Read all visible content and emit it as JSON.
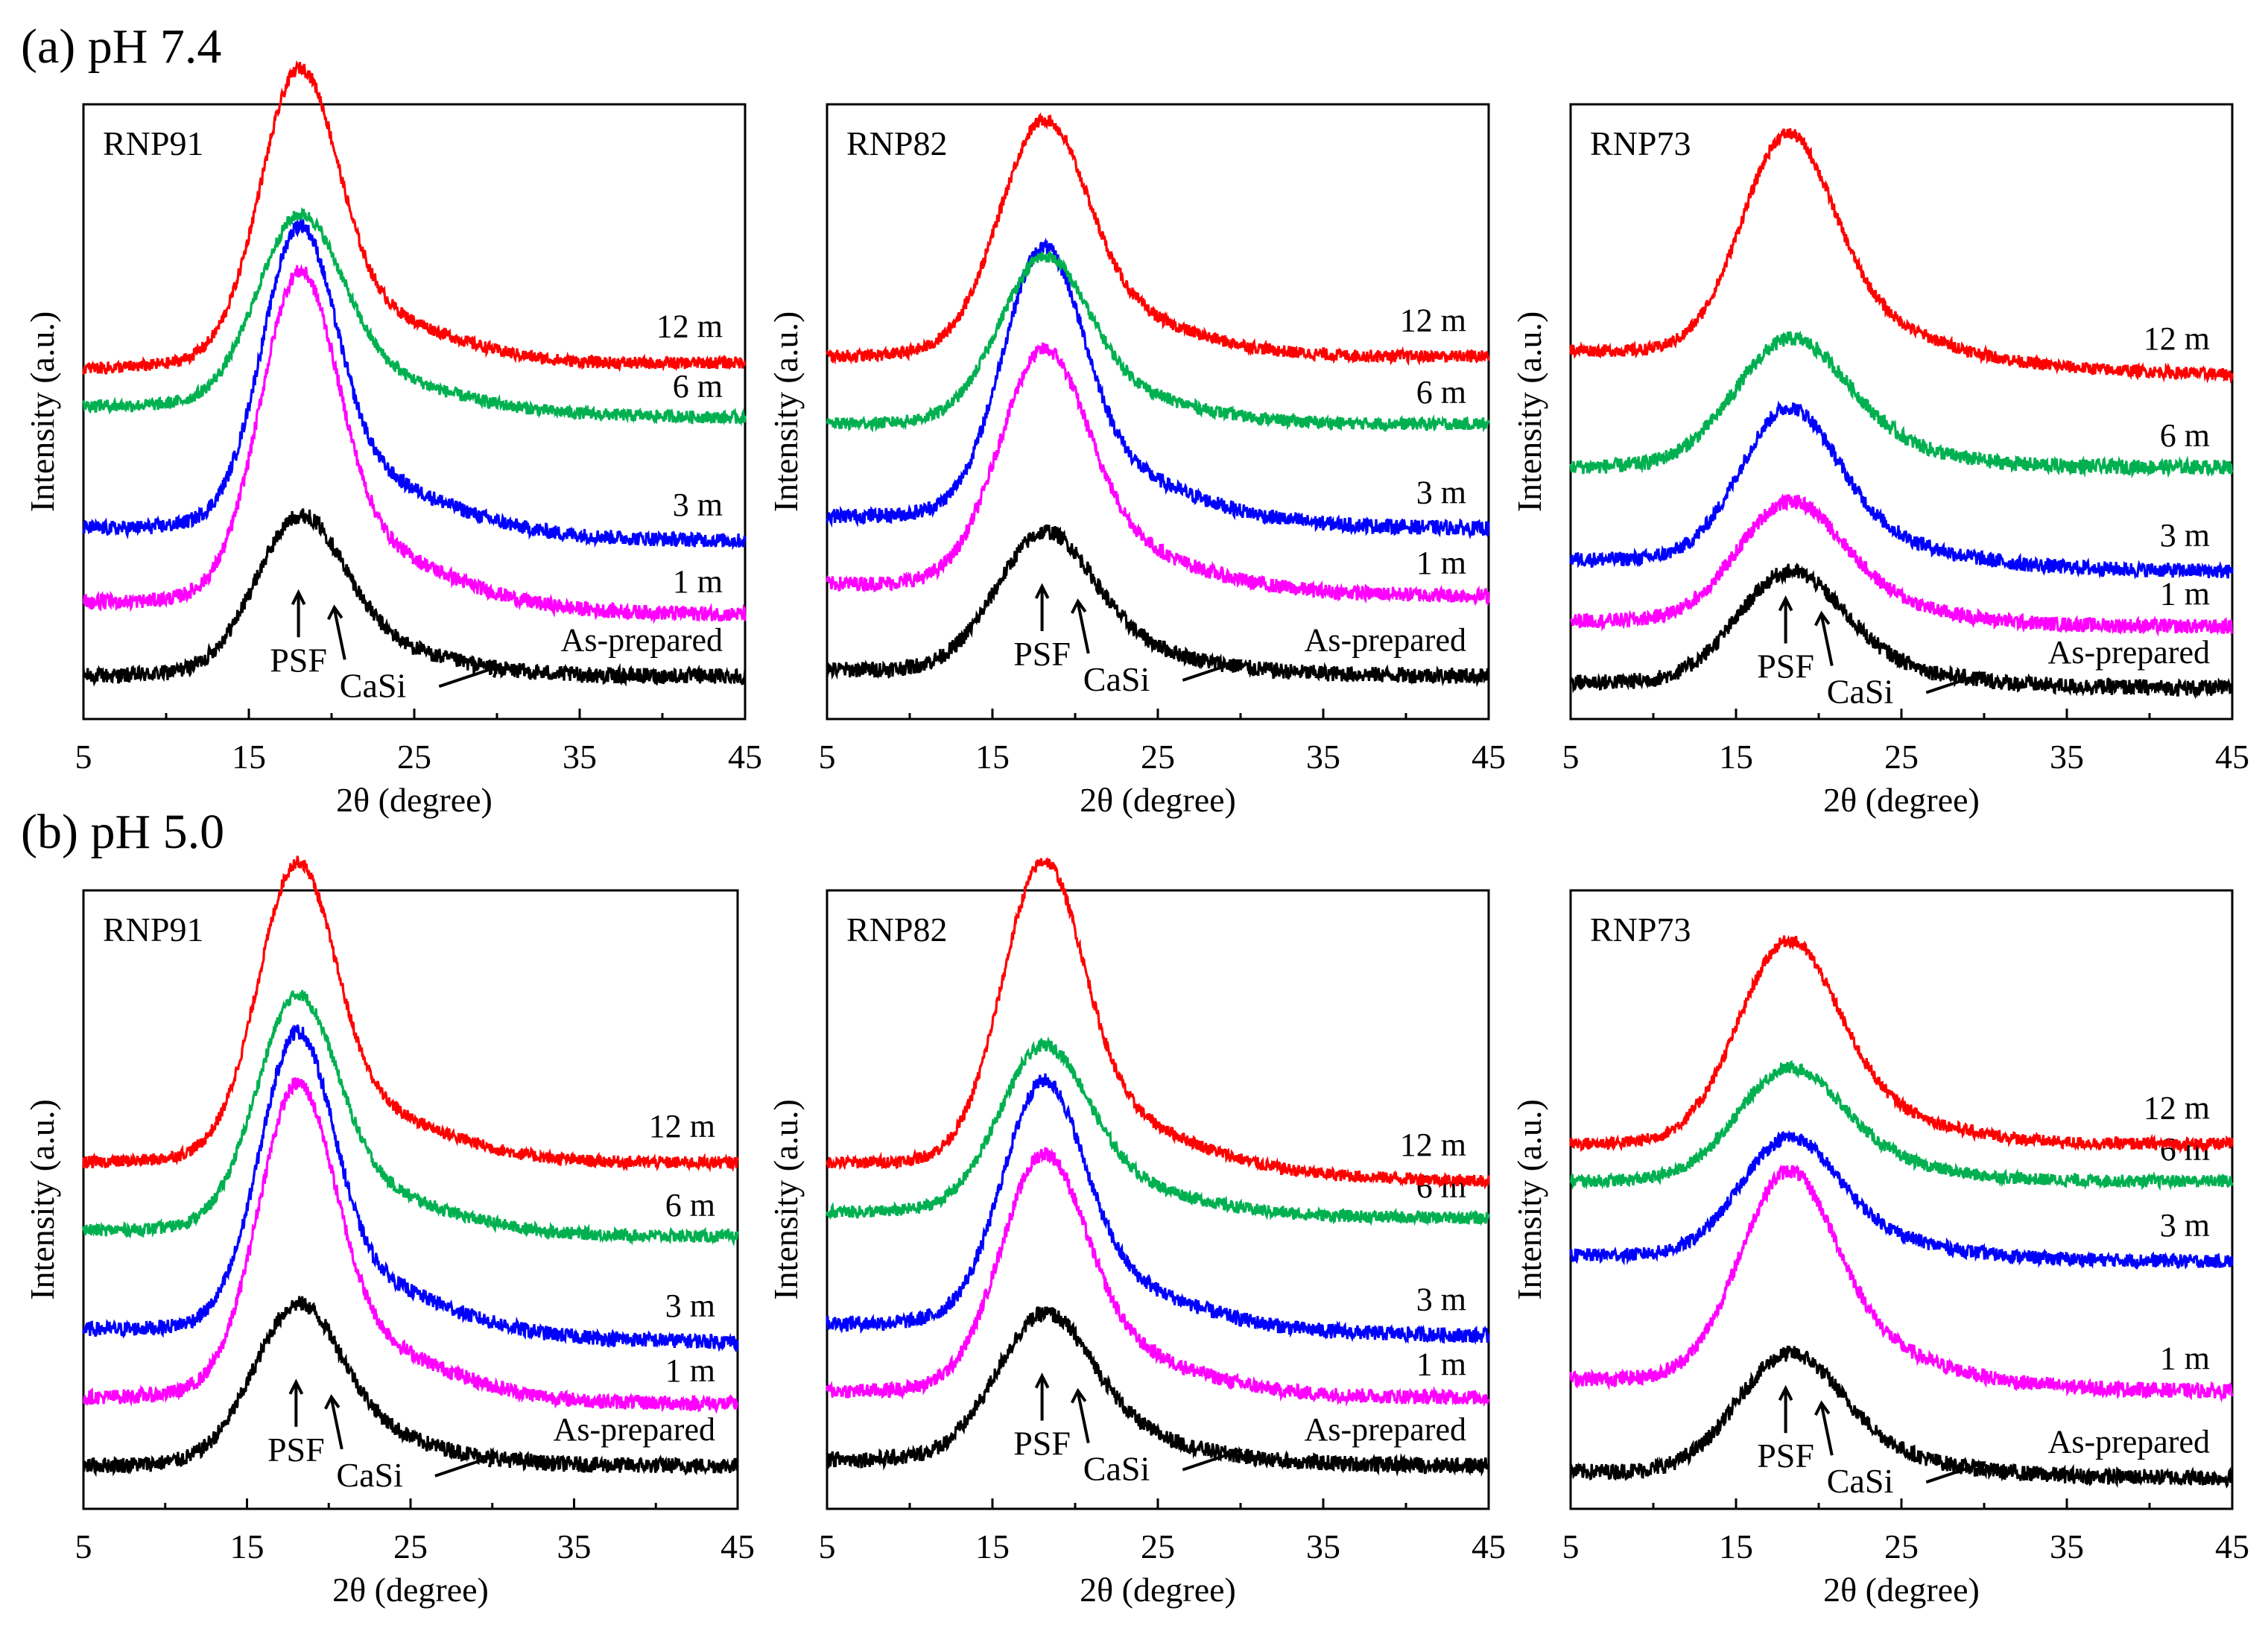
{
  "rows": [
    {
      "heading": "(a) pH 7.4"
    },
    {
      "heading": "(b) pH 5.0"
    }
  ],
  "common": {
    "xlabel": "2θ (degree)",
    "ylabel": "Intensity (a.u.)",
    "xticks": [
      "5",
      "15",
      "25",
      "35",
      "45"
    ],
    "annotations": {
      "psf": "PSF",
      "casi": "CaSi"
    }
  },
  "series_colors": {
    "12 m": "#ff0000",
    "6 m": "#00b050",
    "3 m": "#0000ff",
    "1 m": "#ff00ff",
    "As-prepared": "#000000"
  },
  "chart_data": [
    {
      "type": "line",
      "panel": "(a) pH 7.4",
      "title": "RNP91",
      "xlabel": "2θ (degree)",
      "ylabel": "Intensity (a.u.)",
      "xlim": [
        5,
        45
      ],
      "ylim": [
        0,
        100
      ],
      "series": [
        {
          "name": "As-prepared",
          "label": "As-prepared",
          "base": 7.0,
          "end": 7.0,
          "peak": 22,
          "width": 2.6,
          "shoulder": 5,
          "noise": 1.3
        },
        {
          "name": "1 m",
          "label": "1 m",
          "base": 19.0,
          "end": 17.0,
          "peak": 47,
          "width": 2.3,
          "shoulder": 6,
          "noise": 1.2
        },
        {
          "name": "3 m",
          "label": "3 m",
          "base": 31.0,
          "end": 29.0,
          "peak": 43,
          "width": 2.2,
          "shoulder": 6,
          "noise": 1.2
        },
        {
          "name": "6 m",
          "label": "6 m",
          "base": 51.0,
          "end": 49.0,
          "peak": 27,
          "width": 2.5,
          "shoulder": 5,
          "noise": 1.0
        },
        {
          "name": "12 m",
          "label": "12 m",
          "base": 57.0,
          "end": 58.0,
          "peak": 42,
          "width": 2.3,
          "shoulder": 5,
          "noise": 1.0
        }
      ]
    },
    {
      "type": "line",
      "panel": "(a) pH 7.4",
      "title": "RNP82",
      "xlabel": "2θ (degree)",
      "ylabel": "Intensity (a.u.)",
      "xlim": [
        5,
        45
      ],
      "ylim": [
        0,
        100
      ],
      "series": [
        {
          "name": "As-prepared",
          "label": "As-prepared",
          "base": 8.0,
          "end": 7.0,
          "peak": 19,
          "width": 2.8,
          "shoulder": 5,
          "noise": 1.3
        },
        {
          "name": "1 m",
          "label": "1 m",
          "base": 22.0,
          "end": 20.0,
          "peak": 33,
          "width": 2.6,
          "shoulder": 6,
          "noise": 1.2
        },
        {
          "name": "3 m",
          "label": "3 m",
          "base": 33.0,
          "end": 31.0,
          "peak": 38,
          "width": 2.4,
          "shoulder": 6,
          "noise": 1.2
        },
        {
          "name": "6 m",
          "label": "6 m",
          "base": 48.0,
          "end": 48.0,
          "peak": 23,
          "width": 2.6,
          "shoulder": 5,
          "noise": 1.0
        },
        {
          "name": "12 m",
          "label": "12 m",
          "base": 59.0,
          "end": 59.0,
          "peak": 33,
          "width": 2.6,
          "shoulder": 5,
          "noise": 1.0
        }
      ]
    },
    {
      "type": "line",
      "panel": "(a) pH 7.4",
      "title": "RNP73",
      "xlabel": "2θ (degree)",
      "ylabel": "Intensity (a.u.)",
      "xlim": [
        5,
        45
      ],
      "ylim": [
        0,
        100
      ],
      "series": [
        {
          "name": "As-prepared",
          "label": "As-prepared",
          "base": 6.0,
          "end": 5.0,
          "peak": 15,
          "width": 3.0,
          "shoulder": 5,
          "noise": 1.3
        },
        {
          "name": "1 m",
          "label": "1 m",
          "base": 16.0,
          "end": 15.0,
          "peak": 16,
          "width": 3.0,
          "shoulder": 6,
          "noise": 1.2
        },
        {
          "name": "3 m",
          "label": "3 m",
          "base": 26.0,
          "end": 24.0,
          "peak": 21,
          "width": 2.8,
          "shoulder": 6,
          "noise": 1.2
        },
        {
          "name": "6 m",
          "label": "6 m",
          "base": 41.0,
          "end": 41.0,
          "peak": 17,
          "width": 3.2,
          "shoulder": 6,
          "noise": 1.2
        },
        {
          "name": "12 m",
          "label": "12 m",
          "base": 60.0,
          "end": 56.0,
          "peak": 31,
          "width": 2.7,
          "shoulder": 6,
          "noise": 1.0
        }
      ]
    },
    {
      "type": "line",
      "panel": "(b) pH 5.0",
      "title": "RNP91",
      "xlabel": "2θ (degree)",
      "ylabel": "Intensity (a.u.)",
      "xlim": [
        5,
        45
      ],
      "ylim": [
        0,
        100
      ],
      "series": [
        {
          "name": "As-prepared",
          "label": "As-prepared",
          "base": 7.0,
          "end": 7.0,
          "peak": 22,
          "width": 2.6,
          "shoulder": 5,
          "noise": 1.3
        },
        {
          "name": "1 m",
          "label": "1 m",
          "base": 18.0,
          "end": 17.0,
          "peak": 44,
          "width": 2.3,
          "shoulder": 6,
          "noise": 1.2
        },
        {
          "name": "3 m",
          "label": "3 m",
          "base": 29.0,
          "end": 27.0,
          "peak": 42,
          "width": 2.2,
          "shoulder": 6,
          "noise": 1.2
        },
        {
          "name": "6 m",
          "label": "6 m",
          "base": 45.0,
          "end": 44.0,
          "peak": 33,
          "width": 2.4,
          "shoulder": 5,
          "noise": 1.0
        },
        {
          "name": "12 m",
          "label": "12 m",
          "base": 56.0,
          "end": 56.0,
          "peak": 42,
          "width": 2.3,
          "shoulder": 5,
          "noise": 1.0
        }
      ]
    },
    {
      "type": "line",
      "panel": "(b) pH 5.0",
      "title": "RNP82",
      "xlabel": "2θ (degree)",
      "ylabel": "Intensity (a.u.)",
      "xlim": [
        5,
        45
      ],
      "ylim": [
        0,
        100
      ],
      "series": [
        {
          "name": "As-prepared",
          "label": "As-prepared",
          "base": 8.0,
          "end": 7.0,
          "peak": 20,
          "width": 2.8,
          "shoulder": 5,
          "noise": 1.3
        },
        {
          "name": "1 m",
          "label": "1 m",
          "base": 19.0,
          "end": 18.0,
          "peak": 33,
          "width": 2.5,
          "shoulder": 6,
          "noise": 1.2
        },
        {
          "name": "3 m",
          "label": "3 m",
          "base": 30.0,
          "end": 28.0,
          "peak": 34,
          "width": 2.4,
          "shoulder": 6,
          "noise": 1.2
        },
        {
          "name": "6 m",
          "label": "6 m",
          "base": 48.0,
          "end": 47.0,
          "peak": 23,
          "width": 2.6,
          "shoulder": 5,
          "noise": 1.0
        },
        {
          "name": "12 m",
          "label": "12 m",
          "base": 56.0,
          "end": 53.0,
          "peak": 43,
          "width": 2.4,
          "shoulder": 5,
          "noise": 1.0
        }
      ]
    },
    {
      "type": "line",
      "panel": "(b) pH 5.0",
      "title": "RNP73",
      "xlabel": "2θ (degree)",
      "ylabel": "Intensity (a.u.)",
      "xlim": [
        5,
        45
      ],
      "ylim": [
        0,
        100
      ],
      "series": [
        {
          "name": "As-prepared",
          "label": "As-prepared",
          "base": 6.0,
          "end": 5.0,
          "peak": 16,
          "width": 3.0,
          "shoulder": 5,
          "noise": 1.3
        },
        {
          "name": "1 m",
          "label": "1 m",
          "base": 21.0,
          "end": 19.0,
          "peak": 29,
          "width": 2.8,
          "shoulder": 6,
          "noise": 1.2
        },
        {
          "name": "3 m",
          "label": "3 m",
          "base": 41.0,
          "end": 40.0,
          "peak": 16,
          "width": 2.8,
          "shoulder": 5,
          "noise": 1.1
        },
        {
          "name": "6 m",
          "label": "6 m",
          "base": 53.0,
          "end": 53.0,
          "peak": 15,
          "width": 3.0,
          "shoulder": 5,
          "noise": 1.0
        },
        {
          "name": "12 m",
          "label": "12 m",
          "base": 59.0,
          "end": 59.0,
          "peak": 28,
          "width": 2.9,
          "shoulder": 5,
          "noise": 1.0
        }
      ]
    }
  ]
}
